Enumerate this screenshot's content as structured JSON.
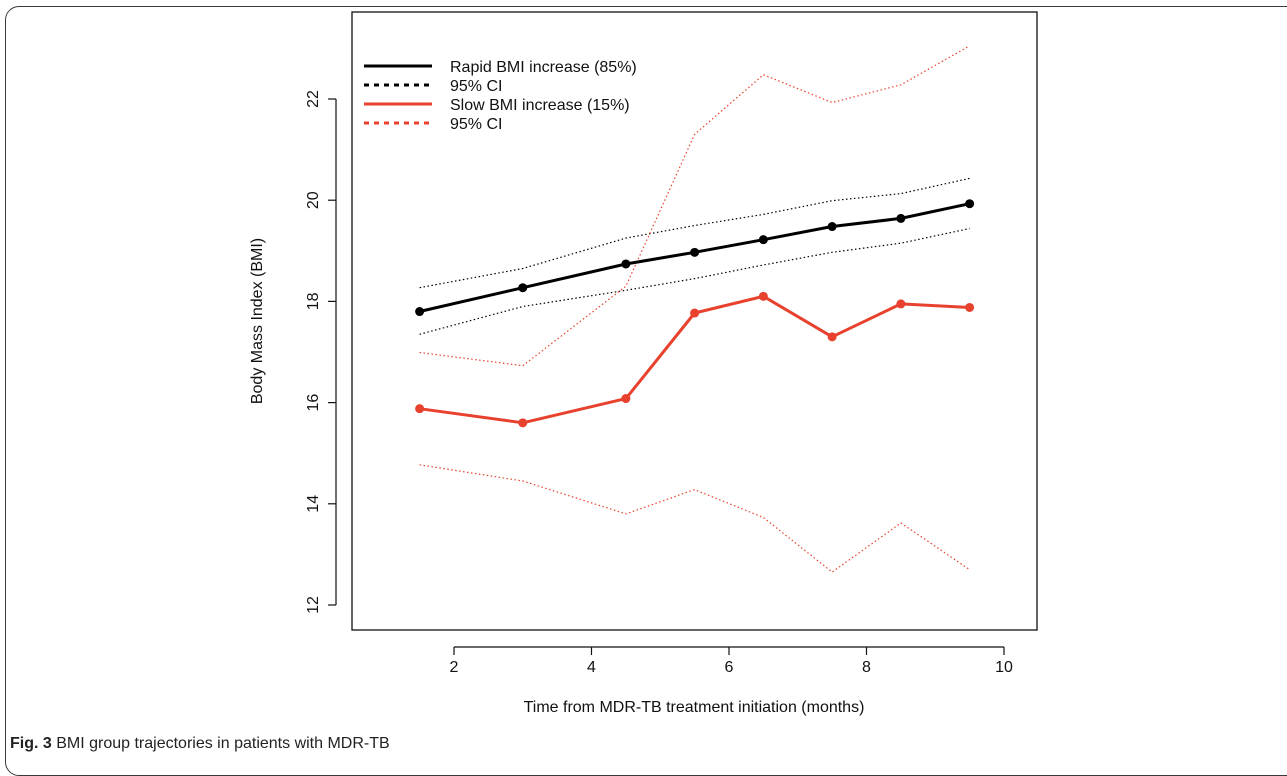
{
  "caption": {
    "label": "Fig. 3",
    "text": " BMI group trajectories in patients with MDR-TB"
  },
  "chart_data": {
    "type": "line",
    "title": "",
    "xlabel": "Time from MDR-TB treatment initiation (months)",
    "ylabel": "Body Mass Index (BMI)",
    "xlim": [
      1.0,
      10.0
    ],
    "ylim": [
      12.0,
      23.0
    ],
    "xticks": [
      2,
      4,
      6,
      8,
      10
    ],
    "yticks": [
      12,
      14,
      16,
      18,
      20,
      22
    ],
    "grid": false,
    "legend_position": "top-left",
    "x": [
      1.5,
      3,
      4.5,
      5.5,
      6.5,
      7.5,
      8.5,
      9.5
    ],
    "series": [
      {
        "name": "Rapid BMI increase (85%)",
        "color": "#000000",
        "style": "solid",
        "markers": true,
        "values": [
          17.8,
          18.27,
          18.74,
          18.97,
          19.22,
          19.48,
          19.64,
          19.93
        ]
      },
      {
        "name": "95% CI",
        "color": "#000000",
        "style": "dotted",
        "markers": false,
        "band_of": "Rapid BMI increase (85%)",
        "upper": [
          18.27,
          18.65,
          19.25,
          19.5,
          19.72,
          19.99,
          20.13,
          20.43
        ],
        "lower": [
          17.35,
          17.9,
          18.22,
          18.45,
          18.72,
          18.97,
          19.15,
          19.44
        ]
      },
      {
        "name": "Slow BMI increase (15%)",
        "color": "#e8412e",
        "style": "solid",
        "markers": true,
        "values": [
          15.88,
          15.6,
          16.08,
          17.77,
          18.1,
          17.3,
          17.95,
          17.88
        ]
      },
      {
        "name": "95% CI",
        "color": "#e8412e",
        "style": "dotted",
        "markers": false,
        "band_of": "Slow BMI increase (15%)",
        "upper": [
          16.99,
          16.73,
          18.3,
          21.3,
          22.48,
          21.93,
          22.28,
          23.05
        ],
        "lower": [
          14.77,
          14.45,
          13.8,
          14.28,
          13.73,
          12.65,
          13.62,
          12.7
        ]
      }
    ]
  }
}
